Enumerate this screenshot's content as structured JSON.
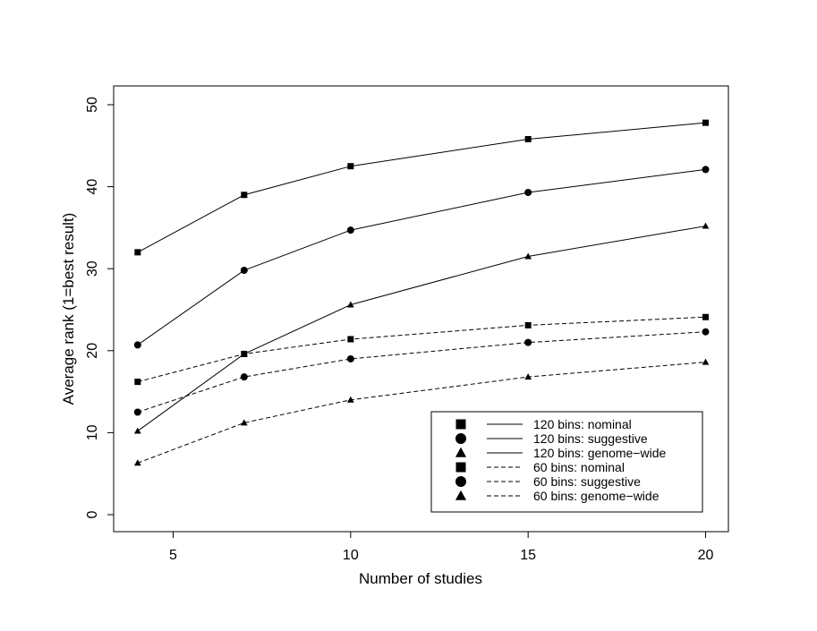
{
  "chart_data": {
    "type": "line",
    "title": "",
    "xlabel": "Number of studies",
    "ylabel": "Average rank (1=best result)",
    "xlim": [
      3.5,
      21
    ],
    "ylim": [
      -2,
      52
    ],
    "x_ticks": [
      5,
      10,
      15,
      20
    ],
    "y_ticks": [
      0,
      10,
      20,
      30,
      40,
      50
    ],
    "x": [
      4,
      7,
      10,
      15,
      20
    ],
    "grid": false,
    "legend_position": "bottom-right",
    "series": [
      {
        "name": "120 bins: nominal",
        "marker": "square",
        "linestyle": "solid",
        "values": [
          32.0,
          39.0,
          42.5,
          45.8,
          47.8
        ]
      },
      {
        "name": "120 bins: suggestive",
        "marker": "circle",
        "linestyle": "solid",
        "values": [
          20.7,
          29.8,
          34.7,
          39.3,
          42.1
        ]
      },
      {
        "name": "120 bins: genome−wide",
        "marker": "triangle",
        "linestyle": "solid",
        "values": [
          10.2,
          19.6,
          25.6,
          31.5,
          35.2
        ]
      },
      {
        "name": "60 bins: nominal",
        "marker": "square",
        "linestyle": "dashed",
        "values": [
          16.2,
          19.6,
          21.4,
          23.1,
          24.1
        ]
      },
      {
        "name": "60 bins: suggestive",
        "marker": "circle",
        "linestyle": "dashed",
        "values": [
          12.5,
          16.8,
          19.0,
          21.0,
          22.3
        ]
      },
      {
        "name": "60 bins: genome−wide",
        "marker": "triangle",
        "linestyle": "dashed",
        "values": [
          6.3,
          11.2,
          14.0,
          16.8,
          18.6
        ]
      }
    ]
  }
}
